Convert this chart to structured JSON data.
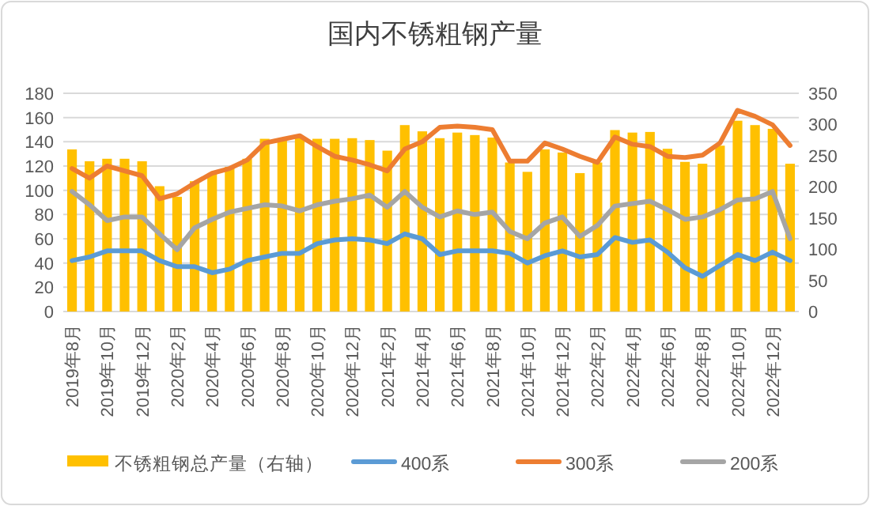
{
  "chart_data": {
    "type": "line",
    "title": "国内不锈粗钢产量",
    "categories": [
      "2019年8月",
      null,
      "2019年10月",
      null,
      "2019年12月",
      null,
      "2020年2月",
      null,
      "2020年4月",
      null,
      "2020年6月",
      null,
      "2020年8月",
      null,
      "2020年10月",
      null,
      "2020年12月",
      null,
      "2021年2月",
      null,
      "2021年4月",
      null,
      "2021年6月",
      null,
      "2021年8月",
      null,
      "2021年10月",
      null,
      "2021年12月",
      null,
      "2022年2月",
      null,
      "2022年4月",
      null,
      "2022年6月",
      null,
      "2022年8月",
      null,
      "2022年10月",
      null,
      "2022年12月",
      null
    ],
    "series": [
      {
        "name": "不锈粗钢总产量（右轴）",
        "type": "bar",
        "axis": "y2",
        "color": "#ffc000",
        "values": [
          260,
          241,
          245,
          245,
          241,
          201,
          184,
          209,
          222,
          232,
          245,
          277,
          277,
          281,
          277,
          277,
          278,
          275,
          258,
          299,
          289,
          278,
          287,
          283,
          279,
          239,
          224,
          260,
          255,
          222,
          239,
          291,
          287,
          288,
          261,
          240,
          237,
          266,
          306,
          299,
          293,
          237
        ]
      },
      {
        "name": "400系",
        "color": "#5b9bd5",
        "values": [
          42,
          45,
          50,
          50,
          50,
          42,
          37,
          37,
          32,
          35,
          42,
          45,
          48,
          48,
          56,
          59,
          60,
          59,
          56,
          64,
          60,
          47,
          50,
          50,
          50,
          48,
          40,
          46,
          50,
          45,
          47,
          61,
          57,
          59,
          49,
          36,
          29,
          38,
          47,
          42,
          49,
          42
        ]
      },
      {
        "name": "300系",
        "color": "#ed7d31",
        "values": [
          118,
          110,
          120,
          116,
          112,
          93,
          97,
          106,
          114,
          118,
          125,
          139,
          142,
          145,
          136,
          128,
          125,
          121,
          116,
          134,
          140,
          152,
          153,
          152,
          150,
          124,
          124,
          139,
          134,
          128,
          123,
          144,
          138,
          136,
          128,
          127,
          129,
          139,
          166,
          161,
          154,
          137
        ]
      },
      {
        "name": "200系",
        "color": "#a5a5a5",
        "values": [
          99,
          88,
          75,
          78,
          78,
          64,
          51,
          69,
          76,
          82,
          85,
          88,
          87,
          83,
          88,
          91,
          93,
          96,
          86,
          99,
          86,
          78,
          83,
          80,
          82,
          66,
          60,
          73,
          78,
          62,
          71,
          87,
          89,
          91,
          84,
          76,
          78,
          84,
          92,
          93,
          99,
          60
        ]
      }
    ],
    "ylim": [
      0,
      180
    ],
    "yticks": [
      0,
      20,
      40,
      60,
      80,
      100,
      120,
      140,
      160,
      180
    ],
    "y2lim": [
      0,
      350
    ],
    "y2ticks": [
      0,
      50,
      100,
      150,
      200,
      250,
      300,
      350
    ],
    "grid": "y",
    "legend": "bottom"
  }
}
